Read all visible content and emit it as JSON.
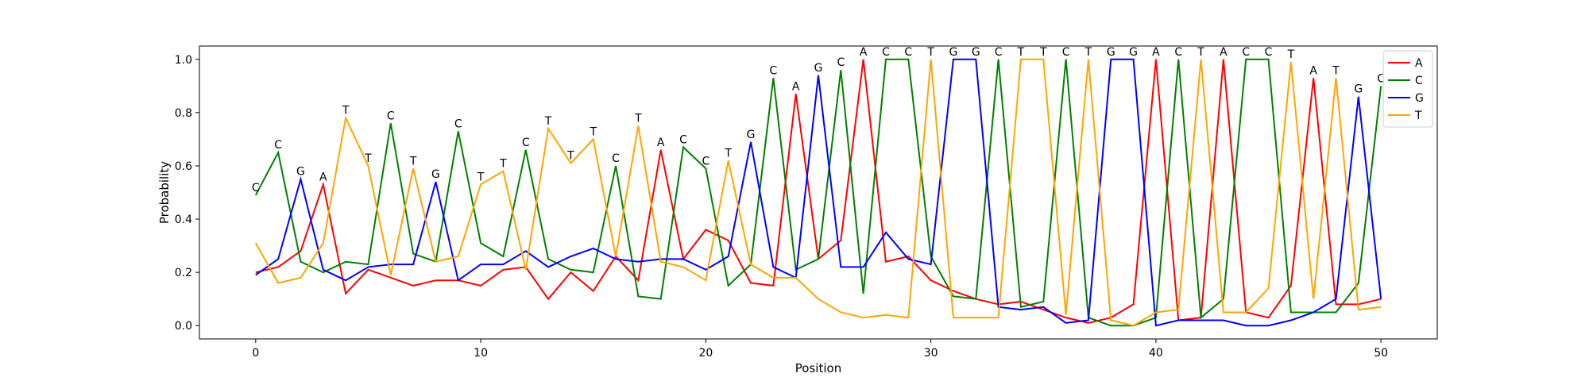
{
  "chart_data": {
    "type": "line",
    "title": "",
    "xlabel": "Position",
    "ylabel": "Probability",
    "xlim": [
      -2.5,
      52.5
    ],
    "ylim": [
      -0.05,
      1.05
    ],
    "xticks": [
      0,
      10,
      20,
      30,
      40,
      50
    ],
    "yticks": [
      0.0,
      0.2,
      0.4,
      0.6,
      0.8,
      1.0
    ],
    "ytick_labels": [
      "0.0",
      "0.2",
      "0.4",
      "0.6",
      "0.8",
      "1.0"
    ],
    "grid": false,
    "legend_position": "top-right",
    "x": [
      0,
      1,
      2,
      3,
      4,
      5,
      6,
      7,
      8,
      9,
      10,
      11,
      12,
      13,
      14,
      15,
      16,
      17,
      18,
      19,
      20,
      21,
      22,
      23,
      24,
      25,
      26,
      27,
      28,
      29,
      30,
      31,
      32,
      33,
      34,
      35,
      36,
      37,
      38,
      39,
      40,
      41,
      42,
      43,
      44,
      45,
      46,
      47,
      48,
      49,
      50
    ],
    "series": [
      {
        "name": "A",
        "color": "#ff0000",
        "values": [
          0.2,
          0.22,
          0.28,
          0.53,
          0.12,
          0.21,
          0.18,
          0.15,
          0.17,
          0.17,
          0.15,
          0.21,
          0.22,
          0.1,
          0.2,
          0.13,
          0.26,
          0.17,
          0.66,
          0.25,
          0.36,
          0.32,
          0.16,
          0.15,
          0.87,
          0.25,
          0.32,
          1.0,
          0.24,
          0.26,
          0.17,
          0.13,
          0.1,
          0.08,
          0.09,
          0.06,
          0.03,
          0.01,
          0.03,
          0.08,
          1.0,
          0.02,
          0.03,
          1.0,
          0.05,
          0.03,
          0.15,
          0.93,
          0.08,
          0.08,
          0.1
        ]
      },
      {
        "name": "C",
        "color": "#008000",
        "values": [
          0.49,
          0.65,
          0.24,
          0.2,
          0.24,
          0.23,
          0.76,
          0.27,
          0.24,
          0.73,
          0.31,
          0.26,
          0.66,
          0.25,
          0.21,
          0.2,
          0.6,
          0.11,
          0.1,
          0.67,
          0.59,
          0.15,
          0.23,
          0.93,
          0.21,
          0.25,
          0.96,
          0.12,
          1.0,
          1.0,
          0.26,
          0.11,
          0.1,
          1.0,
          0.07,
          0.09,
          1.0,
          0.03,
          0.0,
          0.0,
          0.03,
          1.0,
          0.03,
          0.1,
          1.0,
          1.0,
          0.05,
          0.05,
          0.05,
          0.16,
          0.9
        ]
      },
      {
        "name": "G",
        "color": "#0000ff",
        "values": [
          0.19,
          0.25,
          0.55,
          0.21,
          0.17,
          0.22,
          0.23,
          0.23,
          0.54,
          0.17,
          0.23,
          0.23,
          0.28,
          0.22,
          0.26,
          0.29,
          0.25,
          0.24,
          0.25,
          0.25,
          0.21,
          0.26,
          0.69,
          0.22,
          0.18,
          0.94,
          0.22,
          0.22,
          0.35,
          0.25,
          0.23,
          1.0,
          1.0,
          0.07,
          0.06,
          0.07,
          0.01,
          0.02,
          1.0,
          1.0,
          0.0,
          0.02,
          0.02,
          0.02,
          0.0,
          0.0,
          0.02,
          0.05,
          0.1,
          0.86,
          0.1
        ]
      },
      {
        "name": "T",
        "color": "#ffa500",
        "values": [
          0.31,
          0.16,
          0.18,
          0.31,
          0.78,
          0.6,
          0.19,
          0.59,
          0.24,
          0.26,
          0.53,
          0.58,
          0.21,
          0.74,
          0.61,
          0.7,
          0.26,
          0.75,
          0.24,
          0.22,
          0.17,
          0.62,
          0.23,
          0.18,
          0.18,
          0.1,
          0.05,
          0.03,
          0.04,
          0.03,
          1.0,
          0.03,
          0.03,
          0.03,
          1.0,
          1.0,
          0.04,
          1.0,
          0.02,
          0.0,
          0.05,
          0.06,
          1.0,
          0.05,
          0.05,
          0.14,
          0.99,
          0.1,
          0.93,
          0.06,
          0.07
        ]
      }
    ],
    "annotations": [
      "C",
      "C",
      "G",
      "A",
      "T",
      "T",
      "C",
      "T",
      "G",
      "C",
      "T",
      "T",
      "C",
      "T",
      "T",
      "T",
      "C",
      "T",
      "A",
      "C",
      "C",
      "T",
      "G",
      "C",
      "A",
      "G",
      "C",
      "A",
      "C",
      "C",
      "T",
      "G",
      "G",
      "C",
      "T",
      "T",
      "C",
      "T",
      "G",
      "G",
      "A",
      "C",
      "T",
      "A",
      "C",
      "C",
      "T",
      "A",
      "T",
      "G",
      "C"
    ]
  }
}
